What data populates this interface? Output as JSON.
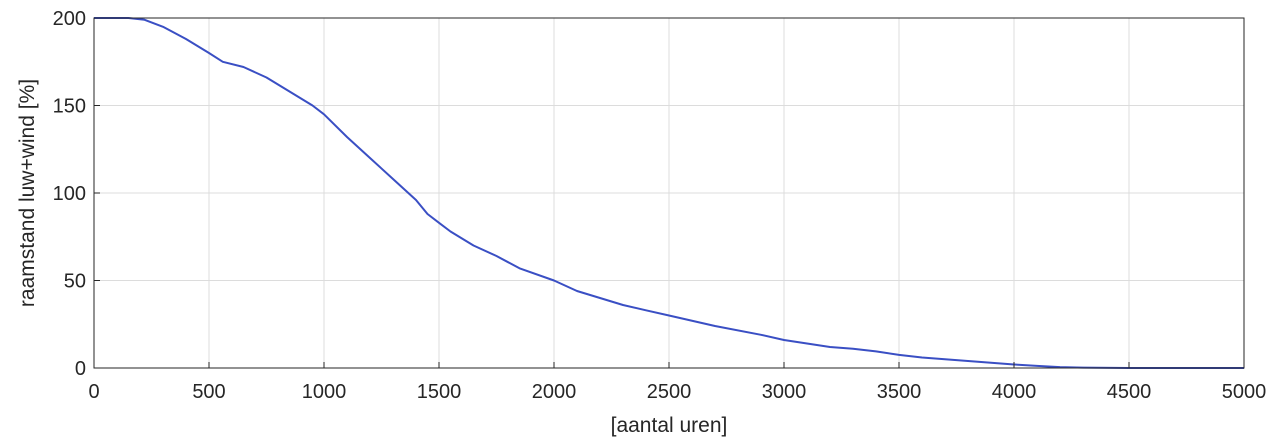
{
  "chart_data": {
    "type": "line",
    "title": "",
    "xlabel": "[aantal uren]",
    "ylabel": "raamstand luw+wind [%]",
    "xlim": [
      0,
      5000
    ],
    "ylim": [
      0,
      200
    ],
    "xticks": [
      0,
      500,
      1000,
      1500,
      2000,
      2500,
      3000,
      3500,
      4000,
      4500,
      5000
    ],
    "yticks": [
      0,
      50,
      100,
      150,
      200
    ],
    "grid": true,
    "legend": "none",
    "colors": {
      "line": "#3a4fc4",
      "grid": "#dcdcdc",
      "axes": "#262626"
    },
    "series": [
      {
        "x": [
          0,
          150,
          220,
          300,
          400,
          500,
          560,
          650,
          750,
          850,
          950,
          1000,
          1100,
          1200,
          1300,
          1400,
          1450,
          1500,
          1550,
          1650,
          1750,
          1850,
          2000,
          2100,
          2200,
          2300,
          2400,
          2500,
          2700,
          2900,
          3000,
          3100,
          3200,
          3300,
          3400,
          3500,
          3600,
          3700,
          3800,
          3900,
          4000,
          4100,
          4200,
          4300,
          4500,
          4700,
          5000
        ],
        "y": [
          200,
          200,
          199,
          195,
          188,
          180,
          175,
          172,
          166,
          158,
          150,
          145,
          132,
          120,
          108,
          96,
          88,
          83,
          78,
          70,
          64,
          57,
          50,
          44,
          40,
          36,
          33,
          30,
          24,
          19,
          16,
          14,
          12,
          11,
          9.5,
          7.5,
          6,
          5,
          4,
          3,
          2,
          1.2,
          0.5,
          0.2,
          0,
          0,
          0
        ]
      }
    ]
  }
}
